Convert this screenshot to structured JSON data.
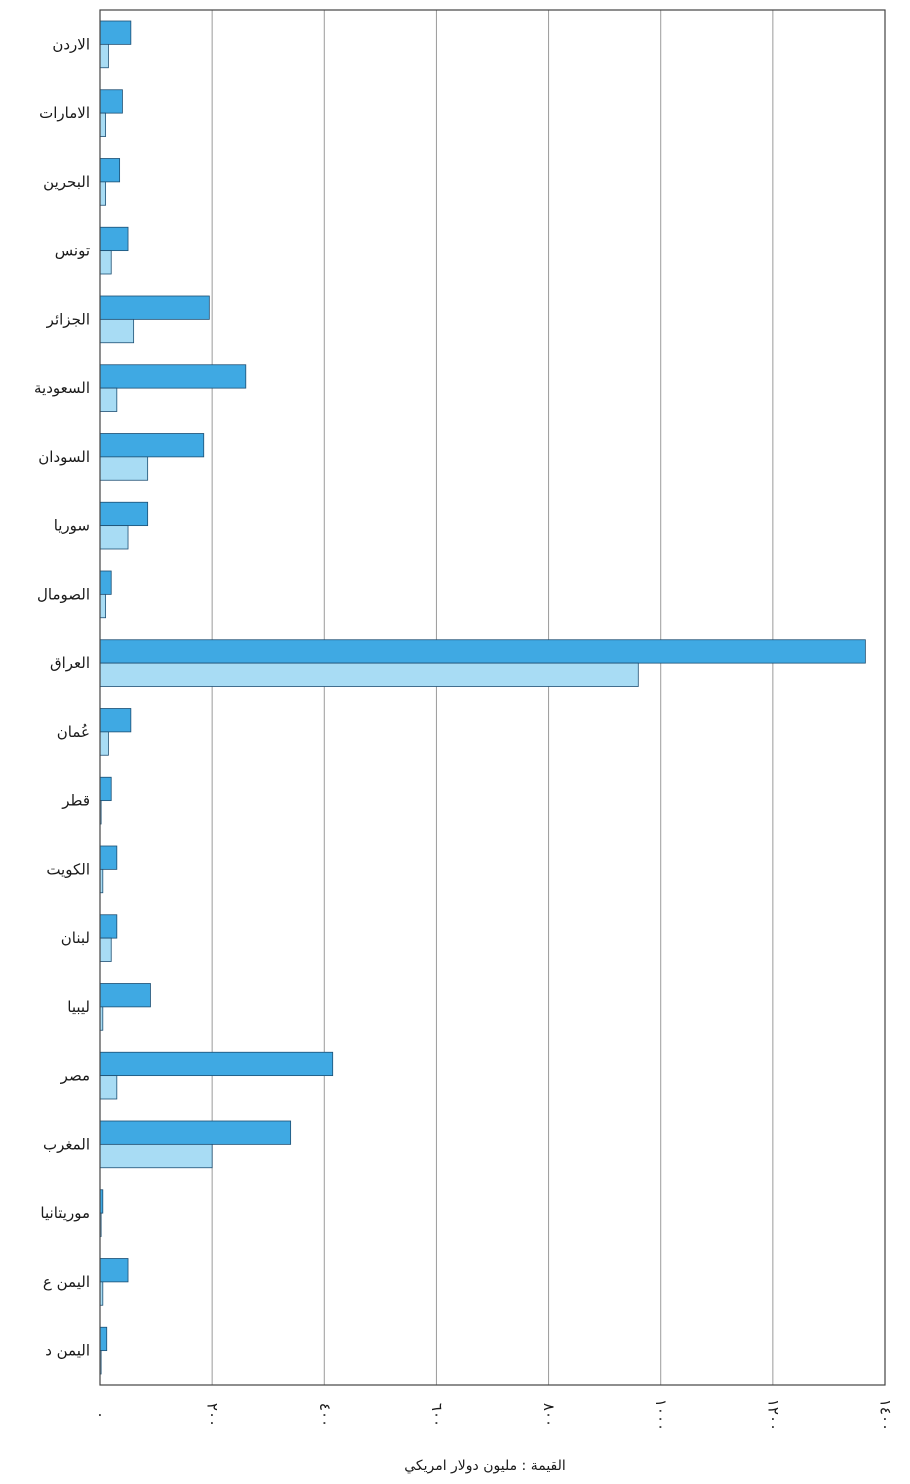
{
  "chart_data": {
    "type": "bar",
    "orientation": "horizontal",
    "xlabel": "القيمة : مليون دولار امريكي",
    "ylabel": "",
    "xlim": [
      0,
      1400
    ],
    "x_ticks": [
      {
        "value": 0,
        "label": "٠"
      },
      {
        "value": 200,
        "label": "٢٠٠"
      },
      {
        "value": 400,
        "label": "٤٠٠"
      },
      {
        "value": 600,
        "label": "٦٠٠"
      },
      {
        "value": 800,
        "label": "٨٠٠"
      },
      {
        "value": 1000,
        "label": "١٠٠٠"
      },
      {
        "value": 1200,
        "label": "١٢٠٠"
      },
      {
        "value": 1400,
        "label": "١٤٠٠"
      }
    ],
    "grid": true,
    "colors": {
      "series_dark": "#3fa9e3",
      "series_light": "#a8dcf4",
      "grid": "#9a9a9a"
    },
    "categories": [
      "الاردن",
      "الامارات",
      "البحرين",
      "تونس",
      "الجزائر",
      "السعودية",
      "السودان",
      "سوريا",
      "الصومال",
      "العراق",
      "عُمان",
      "قطر",
      "الكويت",
      "لبنان",
      "ليبيا",
      "مصر",
      "المغرب",
      "موريتانيا",
      "اليمن ع",
      "اليمن د"
    ],
    "series": [
      {
        "values": [
          55,
          40,
          35,
          50,
          195,
          260,
          185,
          85,
          20,
          1365,
          55,
          20,
          30,
          30,
          90,
          415,
          340,
          5,
          50,
          12
        ]
      },
      {
        "values": [
          15,
          10,
          10,
          20,
          60,
          30,
          85,
          50,
          10,
          960,
          15,
          2,
          5,
          20,
          5,
          30,
          200,
          2,
          5,
          2
        ]
      }
    ]
  }
}
